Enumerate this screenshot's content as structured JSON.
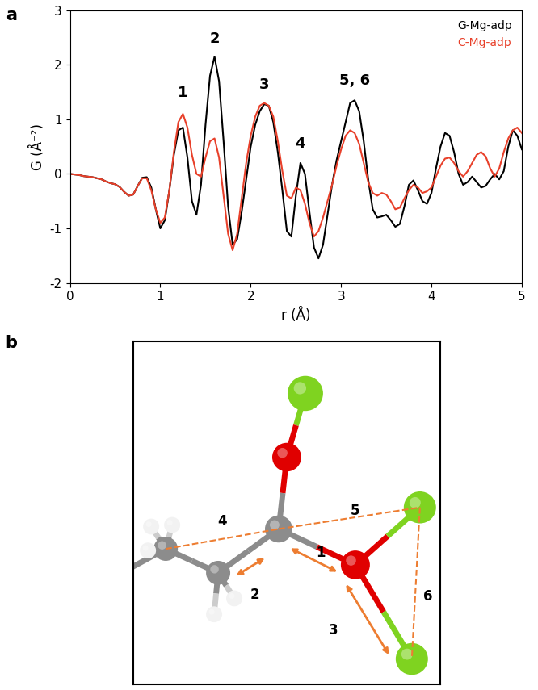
{
  "panel_labels": [
    "a",
    "b"
  ],
  "chart_data": {
    "type": "line",
    "x_label": "r (Å)",
    "y_label": "G (Å⁻²)",
    "xlim": [
      0,
      5
    ],
    "xticks": [
      0,
      1,
      2,
      3,
      4,
      5
    ],
    "ylim": [
      -2,
      3
    ],
    "yticks": [
      -2,
      -1,
      0,
      1,
      2,
      3
    ],
    "legend": "upper right",
    "x": [
      0,
      0.05,
      0.1,
      0.15,
      0.2,
      0.25,
      0.3,
      0.35,
      0.4,
      0.45,
      0.5,
      0.55,
      0.6,
      0.65,
      0.7,
      0.75,
      0.8,
      0.85,
      0.9,
      0.95,
      1.0,
      1.05,
      1.1,
      1.15,
      1.2,
      1.25,
      1.3,
      1.35,
      1.4,
      1.45,
      1.5,
      1.55,
      1.6,
      1.65,
      1.7,
      1.75,
      1.8,
      1.85,
      1.9,
      1.95,
      2.0,
      2.05,
      2.1,
      2.15,
      2.2,
      2.25,
      2.3,
      2.35,
      2.4,
      2.45,
      2.5,
      2.55,
      2.6,
      2.65,
      2.7,
      2.75,
      2.8,
      2.85,
      2.9,
      2.95,
      3.0,
      3.05,
      3.1,
      3.15,
      3.2,
      3.25,
      3.3,
      3.35,
      3.4,
      3.45,
      3.5,
      3.55,
      3.6,
      3.65,
      3.7,
      3.75,
      3.8,
      3.85,
      3.9,
      3.95,
      4.0,
      4.05,
      4.1,
      4.15,
      4.2,
      4.25,
      4.3,
      4.35,
      4.4,
      4.45,
      4.5,
      4.55,
      4.6,
      4.65,
      4.7,
      4.75,
      4.8,
      4.85,
      4.9,
      4.95,
      5.0
    ],
    "series": [
      {
        "name": "G-Mg-adp",
        "color": "#000000",
        "values": [
          0,
          -0.01,
          -0.02,
          -0.04,
          -0.05,
          -0.06,
          -0.08,
          -0.1,
          -0.14,
          -0.17,
          -0.19,
          -0.24,
          -0.33,
          -0.4,
          -0.38,
          -0.22,
          -0.07,
          -0.06,
          -0.25,
          -0.65,
          -1.0,
          -0.85,
          -0.3,
          0.35,
          0.8,
          0.85,
          0.3,
          -0.5,
          -0.75,
          -0.2,
          0.9,
          1.8,
          2.15,
          1.7,
          0.6,
          -0.6,
          -1.3,
          -1.2,
          -0.7,
          -0.1,
          0.5,
          0.9,
          1.15,
          1.28,
          1.25,
          0.95,
          0.4,
          -0.3,
          -1.05,
          -1.15,
          -0.4,
          0.2,
          0.0,
          -0.7,
          -1.35,
          -1.55,
          -1.3,
          -0.75,
          -0.2,
          0.25,
          0.6,
          0.95,
          1.3,
          1.35,
          1.15,
          0.6,
          -0.1,
          -0.65,
          -0.8,
          -0.78,
          -0.75,
          -0.85,
          -0.97,
          -0.92,
          -0.6,
          -0.2,
          -0.12,
          -0.3,
          -0.5,
          -0.55,
          -0.35,
          0.1,
          0.5,
          0.75,
          0.7,
          0.4,
          0.0,
          -0.2,
          -0.15,
          -0.05,
          -0.15,
          -0.25,
          -0.22,
          -0.1,
          0.0,
          -0.1,
          0.05,
          0.5,
          0.8,
          0.7,
          0.45
        ]
      },
      {
        "name": "C-Mg-adp",
        "color": "#e8402a",
        "values": [
          0,
          -0.01,
          -0.02,
          -0.04,
          -0.05,
          -0.06,
          -0.08,
          -0.1,
          -0.14,
          -0.17,
          -0.19,
          -0.24,
          -0.33,
          -0.4,
          -0.38,
          -0.22,
          -0.08,
          -0.08,
          -0.3,
          -0.65,
          -0.9,
          -0.8,
          -0.3,
          0.4,
          0.95,
          1.1,
          0.85,
          0.35,
          0.0,
          -0.05,
          0.3,
          0.6,
          0.65,
          0.3,
          -0.4,
          -1.1,
          -1.4,
          -1.1,
          -0.45,
          0.2,
          0.7,
          1.05,
          1.25,
          1.3,
          1.25,
          1.05,
          0.6,
          0.05,
          -0.4,
          -0.45,
          -0.25,
          -0.3,
          -0.55,
          -0.9,
          -1.15,
          -1.05,
          -0.8,
          -0.5,
          -0.2,
          0.15,
          0.45,
          0.7,
          0.8,
          0.75,
          0.55,
          0.2,
          -0.15,
          -0.35,
          -0.4,
          -0.35,
          -0.38,
          -0.5,
          -0.65,
          -0.62,
          -0.45,
          -0.3,
          -0.2,
          -0.25,
          -0.35,
          -0.32,
          -0.25,
          -0.05,
          0.15,
          0.28,
          0.3,
          0.2,
          0.05,
          -0.05,
          0.05,
          0.2,
          0.35,
          0.4,
          0.32,
          0.1,
          -0.05,
          0.1,
          0.4,
          0.65,
          0.8,
          0.85,
          0.75
        ]
      }
    ],
    "annotations": [
      {
        "text": "1",
        "x": 1.25,
        "y": 1.35
      },
      {
        "text": "2",
        "x": 1.6,
        "y": 2.35
      },
      {
        "text": "3",
        "x": 2.15,
        "y": 1.5
      },
      {
        "text": "4",
        "x": 2.55,
        "y": 0.42
      },
      {
        "text": "5, 6",
        "x": 3.15,
        "y": 1.58
      }
    ]
  },
  "diagram": {
    "distance_labels": [
      "1",
      "2",
      "3",
      "4",
      "5",
      "6"
    ]
  }
}
